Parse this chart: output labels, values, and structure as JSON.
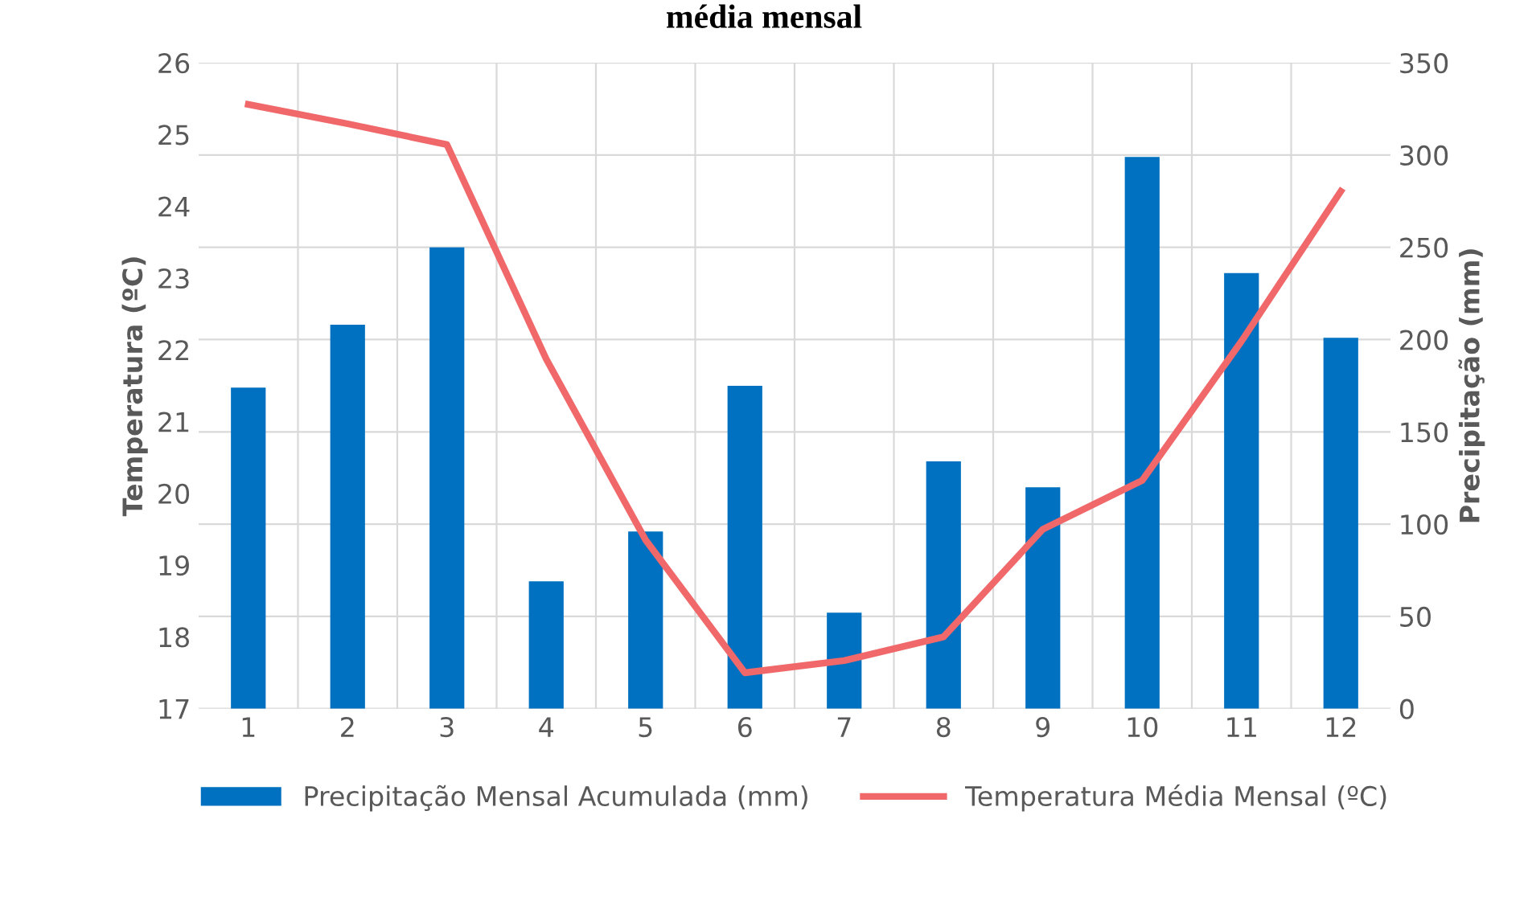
{
  "chart_data": {
    "type": "bar",
    "title": "média mensal",
    "categories": [
      "1",
      "2",
      "3",
      "4",
      "5",
      "6",
      "7",
      "8",
      "9",
      "10",
      "11",
      "12"
    ],
    "ylabel": "Temperatura (ºC)",
    "y2label": "Precipitação (mm)",
    "ylim": [
      17,
      26
    ],
    "yticks": [
      17,
      18,
      19,
      20,
      21,
      22,
      23,
      24,
      25,
      26
    ],
    "y2lim": [
      0,
      350
    ],
    "y2ticks": [
      0,
      50,
      100,
      150,
      200,
      250,
      300,
      350
    ],
    "grid": true,
    "legend": "bottom",
    "series": [
      {
        "name": "Precipitação Mensal Acumulada (mm)",
        "axis": "y2",
        "color": "#0070c0",
        "values": [
          174,
          208,
          250,
          69,
          96,
          175,
          52,
          134,
          120,
          299,
          236,
          201
        ]
      },
      {
        "name": "Temperatura Média Mensal (ºC)",
        "type": "line",
        "axis": "y",
        "color": "#f0686a",
        "values": [
          25.42,
          25.15,
          24.86,
          21.87,
          19.35,
          17.5,
          17.67,
          18.0,
          19.5,
          20.18,
          22.12,
          24.21
        ]
      }
    ]
  }
}
